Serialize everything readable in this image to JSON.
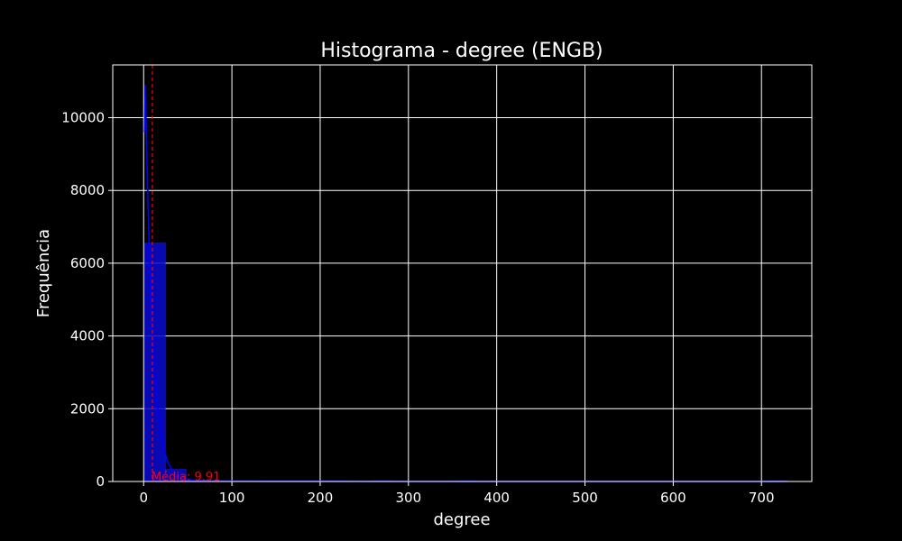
{
  "chart_data": {
    "type": "bar",
    "title": "Histograma - degree (ENGB)",
    "xlabel": "degree",
    "ylabel": "Frequência",
    "xlim": [
      -35,
      757
    ],
    "ylim": [
      0,
      11450
    ],
    "xticks": [
      0,
      100,
      200,
      300,
      400,
      500,
      600,
      700
    ],
    "xtick_labels": [
      "0",
      "100",
      "200",
      "300",
      "400",
      "500",
      "600",
      "700"
    ],
    "yticks": [
      0,
      2000,
      4000,
      6000,
      8000,
      10000
    ],
    "ytick_labels": [
      "0",
      "2000",
      "4000",
      "6000",
      "8000",
      "10000"
    ],
    "grid": true,
    "bins": [
      {
        "x0": 1.0,
        "x1": 24.5,
        "count": 6550
      },
      {
        "x0": 24.5,
        "x1": 48.0,
        "count": 330
      },
      {
        "x0": 48.0,
        "x1": 71.5,
        "count": 40
      },
      {
        "x0": 71.5,
        "x1": 95.0,
        "count": 12
      },
      {
        "x0": 95.0,
        "x1": 118.5,
        "count": 5
      },
      {
        "x0": 118.5,
        "x1": 142.0,
        "count": 3
      },
      {
        "x0": 142.0,
        "x1": 165.5,
        "count": 2
      },
      {
        "x0": 165.5,
        "x1": 189.0,
        "count": 1
      },
      {
        "x0": 189.0,
        "x1": 212.5,
        "count": 1
      },
      {
        "x0": 212.5,
        "x1": 236.0,
        "count": 1
      },
      {
        "x0": 236.0,
        "x1": 259.5,
        "count": 0
      },
      {
        "x0": 259.5,
        "x1": 283.0,
        "count": 1
      },
      {
        "x0": 283.0,
        "x1": 306.5,
        "count": 0
      },
      {
        "x0": 306.5,
        "x1": 330.0,
        "count": 0
      },
      {
        "x0": 330.0,
        "x1": 353.5,
        "count": 0
      },
      {
        "x0": 353.5,
        "x1": 377.0,
        "count": 1
      },
      {
        "x0": 377.0,
        "x1": 400.5,
        "count": 0
      },
      {
        "x0": 400.5,
        "x1": 424.0,
        "count": 0
      },
      {
        "x0": 424.0,
        "x1": 447.5,
        "count": 0
      },
      {
        "x0": 447.5,
        "x1": 471.0,
        "count": 0
      },
      {
        "x0": 471.0,
        "x1": 494.5,
        "count": 0
      },
      {
        "x0": 494.5,
        "x1": 518.0,
        "count": 0
      },
      {
        "x0": 518.0,
        "x1": 541.5,
        "count": 0
      },
      {
        "x0": 541.5,
        "x1": 565.0,
        "count": 0
      },
      {
        "x0": 565.0,
        "x1": 588.5,
        "count": 0
      },
      {
        "x0": 588.5,
        "x1": 612.0,
        "count": 0
      },
      {
        "x0": 612.0,
        "x1": 635.5,
        "count": 0
      },
      {
        "x0": 635.5,
        "x1": 659.0,
        "count": 0
      },
      {
        "x0": 659.0,
        "x1": 682.5,
        "count": 0
      },
      {
        "x0": 682.5,
        "x1": 706.0,
        "count": 0
      },
      {
        "x0": 706.0,
        "x1": 729.5,
        "count": 1
      }
    ],
    "kde": {
      "x": [
        1,
        2,
        3,
        4,
        5,
        6,
        7,
        8,
        9,
        10,
        12,
        14,
        16,
        18,
        20,
        24,
        28,
        32,
        36,
        40,
        48,
        56,
        64,
        80,
        100,
        140,
        200,
        300,
        400,
        500,
        600,
        700,
        720
      ],
      "y": [
        9600,
        10900,
        9700,
        8600,
        7600,
        6800,
        6000,
        5300,
        4700,
        4150,
        3250,
        2550,
        2000,
        1580,
        1250,
        790,
        500,
        320,
        210,
        140,
        70,
        40,
        28,
        16,
        10,
        6,
        4,
        3,
        2,
        2,
        2,
        2,
        1
      ]
    },
    "mean": {
      "value": 9.91,
      "label": "Média: 9.91"
    },
    "colors": {
      "background": "#000000",
      "bar_fill": "#0a0ad2",
      "bar_edge": "#1a1aff",
      "kde_line": "#0000ff",
      "mean_line": "#ff0000",
      "grid": "#ffffff",
      "text": "#ffffff"
    }
  }
}
